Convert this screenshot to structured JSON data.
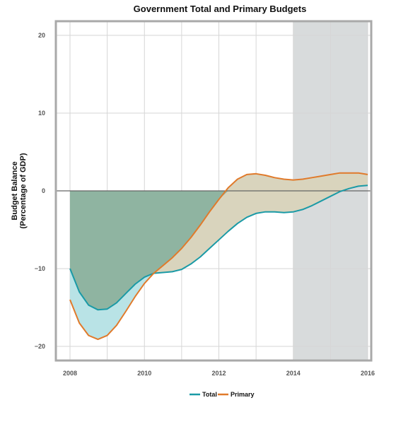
{
  "chart_data": {
    "type": "line",
    "title": "Government Total and Primary Budgets",
    "xlabel": "",
    "ylabel_lines": [
      "Budget Balance",
      "(Percentage of GDP)"
    ],
    "xlim": [
      2008,
      2016
    ],
    "ylim": [
      -22,
      22
    ],
    "x_ticks": [
      "2008",
      "2010",
      "2012",
      "2014",
      "2016"
    ],
    "y_ticks": [
      "20",
      "10",
      "0",
      "−10",
      "−20"
    ],
    "shaded_region": {
      "from": 2014,
      "to": 2016
    },
    "grid": true,
    "legend_position": "bottom-center",
    "x": [
      2008.0,
      2008.25,
      2008.5,
      2008.75,
      2009.0,
      2009.25,
      2009.5,
      2009.75,
      2010.0,
      2010.25,
      2010.5,
      2010.75,
      2011.0,
      2011.25,
      2011.5,
      2011.75,
      2012.0,
      2012.25,
      2012.5,
      2012.75,
      2013.0,
      2013.25,
      2013.5,
      2013.75,
      2014.0,
      2014.25,
      2014.5,
      2014.75,
      2015.0,
      2015.25,
      2015.5,
      2015.75,
      2016.0
    ],
    "series": [
      {
        "name": "Total",
        "color": "#1a9aa6",
        "values": [
          -10.0,
          -13.0,
          -14.7,
          -15.3,
          -15.2,
          -14.4,
          -13.2,
          -12.0,
          -11.1,
          -10.6,
          -10.5,
          -10.4,
          -10.1,
          -9.4,
          -8.5,
          -7.4,
          -6.3,
          -5.2,
          -4.2,
          -3.4,
          -2.9,
          -2.7,
          -2.7,
          -2.8,
          -2.7,
          -2.4,
          -1.9,
          -1.3,
          -0.7,
          -0.1,
          0.3,
          0.6,
          0.7
        ]
      },
      {
        "name": "Primary",
        "color": "#e07a2b",
        "values": [
          -14.0,
          -17.0,
          -18.6,
          -19.1,
          -18.6,
          -17.3,
          -15.5,
          -13.6,
          -11.9,
          -10.6,
          -9.6,
          -8.6,
          -7.4,
          -6.0,
          -4.4,
          -2.7,
          -1.1,
          0.4,
          1.5,
          2.1,
          2.2,
          2.0,
          1.7,
          1.5,
          1.4,
          1.5,
          1.7,
          1.9,
          2.1,
          2.3,
          2.3,
          2.3,
          2.1
        ]
      }
    ],
    "fill_colors": {
      "both_below_zero": "#8fb4a1",
      "between_lines": "#b9e3e6",
      "primary_above_total": "#d9d4bd"
    },
    "legend": [
      {
        "label": "Total",
        "color": "#1a9aa6"
      },
      {
        "label": "Primary",
        "color": "#e07a2b"
      }
    ]
  }
}
